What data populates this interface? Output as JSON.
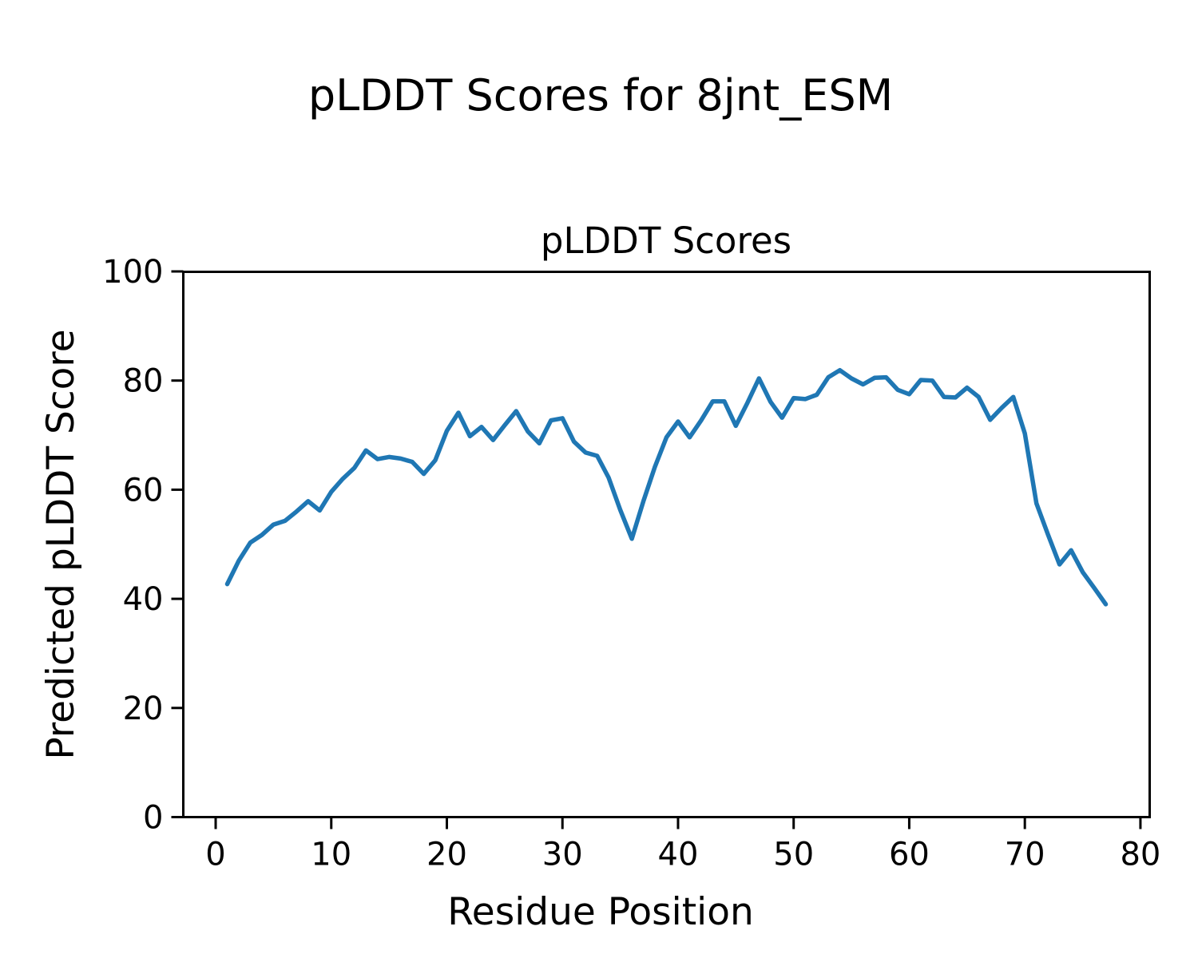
{
  "figure": {
    "suptitle": "pLDDT Scores for 8jnt_ESM",
    "background": "#ffffff"
  },
  "chart_data": {
    "type": "line",
    "title": "pLDDT Scores",
    "xlabel": "Residue Position",
    "ylabel": "Predicted pLDDT Score",
    "xlim": [
      -2.8,
      80.8
    ],
    "ylim": [
      0,
      100
    ],
    "xticks": [
      0,
      10,
      20,
      30,
      40,
      50,
      60,
      70,
      80
    ],
    "yticks": [
      0,
      20,
      40,
      60,
      80,
      100
    ],
    "grid": false,
    "legend": null,
    "line_color": "#1f77b4",
    "axis_color": "#000000",
    "series": [
      {
        "name": "pLDDT",
        "x": [
          1,
          2,
          3,
          4,
          5,
          6,
          7,
          8,
          9,
          10,
          11,
          12,
          13,
          14,
          15,
          16,
          17,
          18,
          19,
          20,
          21,
          22,
          23,
          24,
          25,
          26,
          27,
          28,
          29,
          30,
          31,
          32,
          33,
          34,
          35,
          36,
          37,
          38,
          39,
          40,
          41,
          42,
          43,
          44,
          45,
          46,
          47,
          48,
          49,
          50,
          51,
          52,
          53,
          54,
          55,
          56,
          57,
          58,
          59,
          60,
          61,
          62,
          63,
          64,
          65,
          66,
          67,
          68,
          69,
          70,
          71,
          72,
          73,
          74,
          75,
          76,
          77
        ],
        "values": [
          42.7,
          47.0,
          50.3,
          51.7,
          53.6,
          54.3,
          56.0,
          57.9,
          56.2,
          59.6,
          62.0,
          64.0,
          67.2,
          65.6,
          66.0,
          65.7,
          65.1,
          62.9,
          65.4,
          70.8,
          74.1,
          69.8,
          71.5,
          69.1,
          71.8,
          74.4,
          70.7,
          68.5,
          72.7,
          73.1,
          68.8,
          66.8,
          66.2,
          62.2,
          56.3,
          51.0,
          57.9,
          64.2,
          69.6,
          72.5,
          69.6,
          72.7,
          76.2,
          76.2,
          71.7,
          75.9,
          80.4,
          76.1,
          73.2,
          76.8,
          76.6,
          77.4,
          80.6,
          81.9,
          80.4,
          79.3,
          80.5,
          80.6,
          78.3,
          77.5,
          80.1,
          80.0,
          77.0,
          76.9,
          78.7,
          77.0,
          72.8,
          75.0,
          77.0,
          70.3,
          57.5,
          51.8,
          46.3,
          48.9,
          44.9,
          42.0,
          39.0
        ]
      }
    ]
  }
}
